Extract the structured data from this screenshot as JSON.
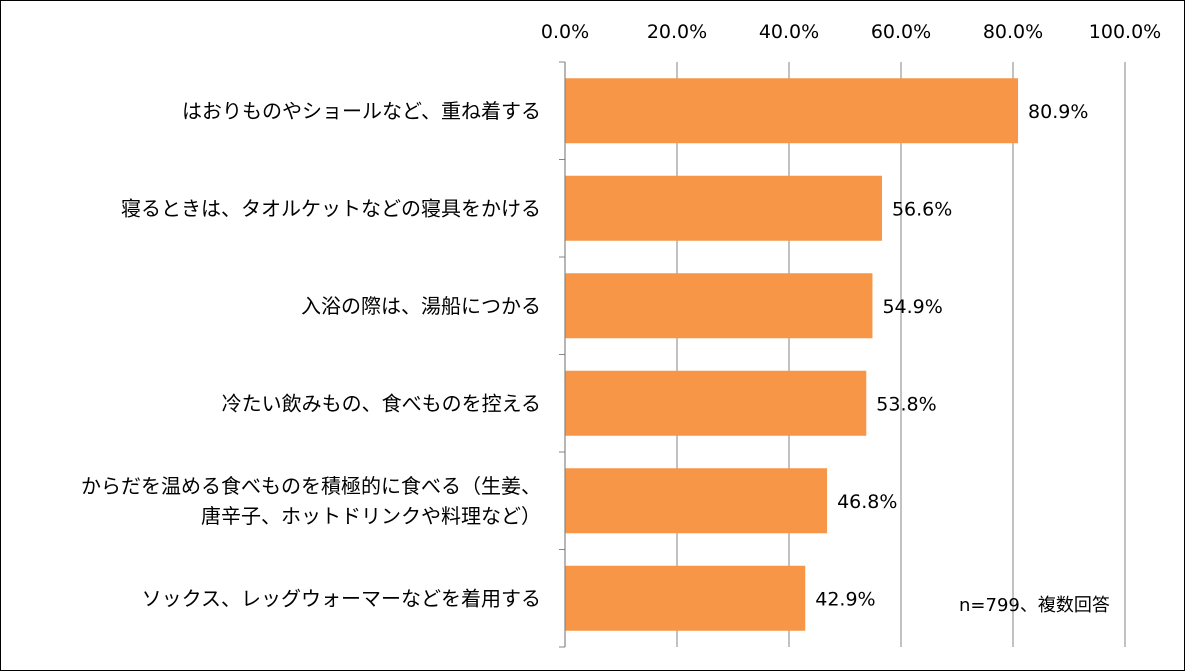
{
  "chart_data": {
    "type": "bar",
    "orientation": "horizontal",
    "categories": [
      [
        "はおりものやショールなど、重ね着する"
      ],
      [
        "寝るときは、タオルケットなどの寝具をかける"
      ],
      [
        "入浴の際は、湯船につかる"
      ],
      [
        "冷たい飲みもの、食べものを控える"
      ],
      [
        "からだを温める食べものを積極的に食べる（生姜、",
        "唐辛子、ホットドリンクや料理など）"
      ],
      [
        "ソックス、レッグウォーマーなどを着用する"
      ]
    ],
    "values": [
      80.9,
      56.6,
      54.9,
      53.8,
      46.8,
      42.9
    ],
    "value_labels": [
      "80.9%",
      "56.6%",
      "54.9%",
      "53.8%",
      "46.8%",
      "42.9%"
    ],
    "xlim": [
      0,
      100
    ],
    "tick_values": [
      0,
      20,
      40,
      60,
      80,
      100
    ],
    "tick_labels": [
      "0.0%",
      "20.0%",
      "40.0%",
      "60.0%",
      "80.0%",
      "100.0%"
    ],
    "axis_position": "top",
    "grid": true,
    "legend": "none",
    "bar_color": "#F79646",
    "grid_color": "#868686",
    "note": "n=799、複数回答"
  }
}
